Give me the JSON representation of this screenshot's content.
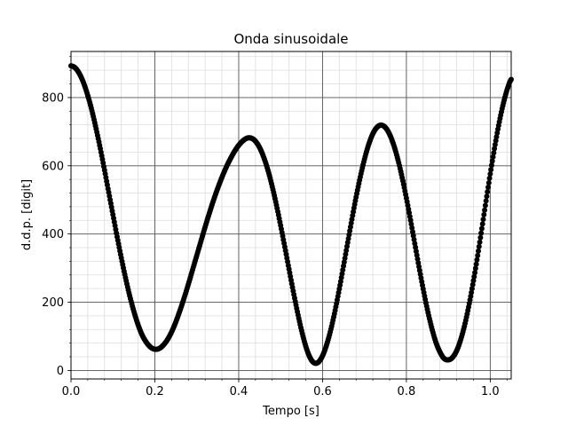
{
  "chart_data": {
    "type": "scatter",
    "title": "Onda sinusoidale",
    "xlabel": "Tempo [s]",
    "ylabel": "d.d.p. [digit]",
    "xlim": [
      0.0,
      1.05
    ],
    "ylim": [
      -25,
      935
    ],
    "xticks": [
      0.0,
      0.2,
      0.4,
      0.6,
      0.8,
      1.0
    ],
    "xtick_labels": [
      "0.0",
      "0.2",
      "0.4",
      "0.6",
      "0.8",
      "1.0"
    ],
    "yticks": [
      0,
      200,
      400,
      600,
      800
    ],
    "ytick_labels": [
      "0",
      "200",
      "400",
      "600",
      "800"
    ],
    "grid": "major and minor",
    "marker_color": "#000000",
    "grid_major_color": "#555555",
    "grid_minor_color": "#dddddd",
    "series": [
      {
        "x": [
          0.0,
          0.01,
          0.02,
          0.03,
          0.04,
          0.05,
          0.06,
          0.07,
          0.08,
          0.09,
          0.1,
          0.11,
          0.12,
          0.13,
          0.14,
          0.15,
          0.16,
          0.17,
          0.18,
          0.19,
          0.2,
          0.21,
          0.22,
          0.23,
          0.24,
          0.25,
          0.26,
          0.27,
          0.28,
          0.29,
          0.3,
          0.31,
          0.32,
          0.33,
          0.34,
          0.35,
          0.36,
          0.37,
          0.38,
          0.39,
          0.4,
          0.41,
          0.42,
          0.43,
          0.44,
          0.45,
          0.46,
          0.47,
          0.48,
          0.49,
          0.5,
          0.51,
          0.52,
          0.53,
          0.54,
          0.55,
          0.56,
          0.57,
          0.58,
          0.59,
          0.6,
          0.61,
          0.62,
          0.63,
          0.64,
          0.65,
          0.66,
          0.67,
          0.68,
          0.69,
          0.7,
          0.71,
          0.72,
          0.73,
          0.74,
          0.75,
          0.76,
          0.77,
          0.78,
          0.79,
          0.8,
          0.81,
          0.82,
          0.83,
          0.84,
          0.85,
          0.86,
          0.87,
          0.88,
          0.89,
          0.9,
          0.91,
          0.92,
          0.93,
          0.94,
          0.95,
          0.96,
          0.97,
          0.98,
          0.99,
          1.0,
          1.01,
          1.02,
          1.03,
          1.04,
          1.05
        ],
        "y": [
          893,
          887,
          870,
          843,
          806,
          761,
          708,
          650,
          587,
          522,
          457,
          392,
          330,
          272,
          219,
          173,
          134,
          103,
          82,
          68,
          62,
          64,
          74,
          90,
          113,
          142,
          176,
          213,
          253,
          295,
          337,
          379,
          421,
          461,
          499,
          534,
          566,
          595,
          620,
          642,
          660,
          673,
          681,
          681,
          672,
          653,
          624,
          586,
          539,
          485,
          425,
          362,
          297,
          233,
          172,
          117,
          71,
          38,
          22,
          24,
          43,
          76,
          121,
          176,
          239,
          306,
          375,
          443,
          508,
          567,
          619,
          662,
          694,
          713,
          719,
          712,
          692,
          660,
          617,
          565,
          505,
          440,
          372,
          304,
          239,
          179,
          127,
          84,
          54,
          35,
          31,
          38,
          58,
          92,
          138,
          196,
          263,
          337,
          416,
          497,
          576,
          650,
          718,
          776,
          822,
          853
        ]
      }
    ]
  }
}
